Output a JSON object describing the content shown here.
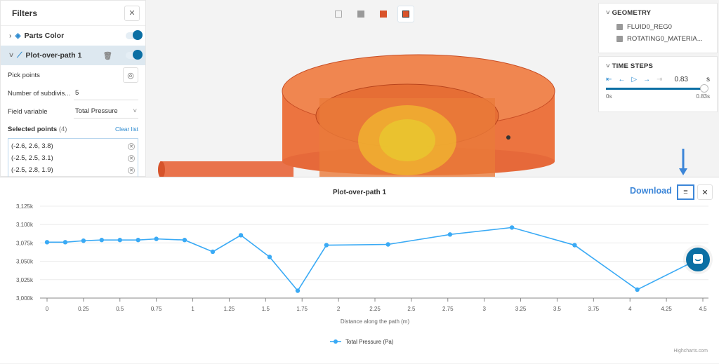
{
  "filters": {
    "title": "Filters",
    "items": [
      {
        "label": "Parts Color"
      },
      {
        "label": "Plot-over-path 1"
      }
    ],
    "pick_points": "Pick points",
    "subdiv_label": "Number of subdivis...",
    "subdiv_value": "5",
    "field_label": "Field variable",
    "field_value": "Total Pressure",
    "selected_label": "Selected points",
    "selected_count": "(4)",
    "clear": "Clear list",
    "points": [
      "(-2.6, 2.6, 3.8)",
      "(-2.5, 2.5, 3.1)",
      "(-2.5, 2.8, 1.9)"
    ]
  },
  "geometry": {
    "title": "GEOMETRY",
    "items": [
      "FLUID0_REG0",
      "ROTATING0_MATERIA..."
    ]
  },
  "time": {
    "title": "TIME STEPS",
    "value": "0.83",
    "unit": "s",
    "min": "0s",
    "max": "0.83s",
    "progress": 1.0
  },
  "chart_header": {
    "download": "Download",
    "credit": "Highcharts.com"
  },
  "colors": {
    "series": "#3aaaf5",
    "accent": "#0b6fa4",
    "download": "#3c86d8"
  },
  "chart_data": {
    "type": "line",
    "title": "Plot-over-path 1",
    "xlabel": "Distance along the path (m)",
    "ylabel": "",
    "xlim": [
      0,
      4.5
    ],
    "ylim": [
      3000,
      3125
    ],
    "xticks": [
      "0",
      "0.25",
      "0.5",
      "0.75",
      "1",
      "1.25",
      "1.5",
      "1.75",
      "2",
      "2.25",
      "2.5",
      "2.75",
      "3",
      "3.25",
      "3.5",
      "3.75",
      "4",
      "4.25",
      "4.5"
    ],
    "yticks": [
      "3,000k",
      "3,025k",
      "3,050k",
      "3,075k",
      "3,100k",
      "3,125k"
    ],
    "grid": true,
    "legend": "bottom",
    "series": [
      {
        "name": "Total Pressure (Pa)",
        "x": [
          0,
          0.125,
          0.25,
          0.375,
          0.5,
          0.625,
          0.75,
          0.944,
          1.137,
          1.33,
          1.527,
          1.72,
          1.917,
          2.34,
          2.765,
          3.19,
          3.62,
          4.05,
          4.47
        ],
        "y": [
          3076,
          3076,
          3078,
          3079,
          3079,
          3079,
          3080.5,
          3079,
          3063,
          3085.5,
          3056,
          3010,
          3072,
          3073,
          3086.5,
          3096,
          3072,
          3011.5,
          3053
        ]
      }
    ]
  }
}
